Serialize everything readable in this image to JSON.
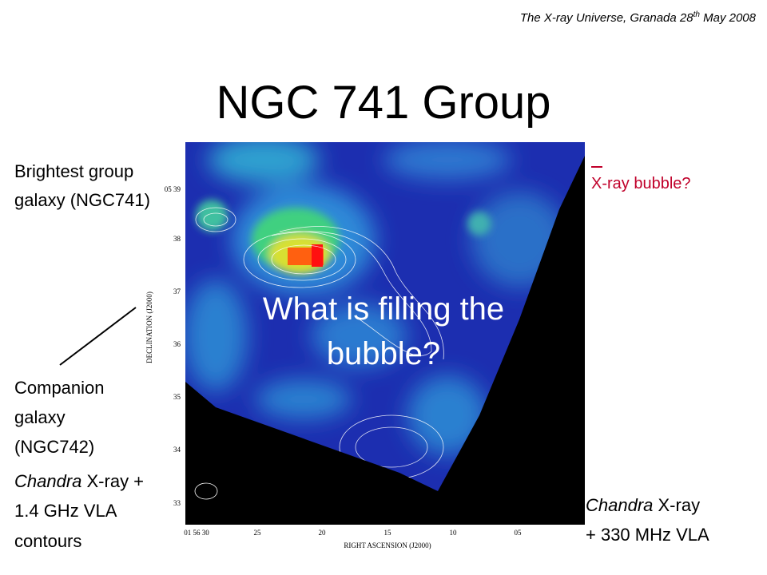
{
  "header": {
    "before": "The X-ray Universe, Granada 28",
    "superscript": "th",
    "after": " May 2008"
  },
  "title": "NGC 741 Group",
  "left_top": {
    "line1": "Brightest group",
    "line2": "galaxy (NGC741)"
  },
  "left_bottom": {
    "line1": "Companion",
    "line2": "galaxy",
    "line3": "(NGC742)",
    "caption_italic": "Chandra",
    "caption_rest": " X-ray +",
    "caption_line2": "1.4 GHz VLA",
    "caption_line3": "contours"
  },
  "right_label": "X-ray bubble?",
  "right_caption": {
    "italic": "Chandra",
    "rest": " X-ray",
    "line2": "+ 330 MHz VLA"
  },
  "overlay": {
    "line1": "What is filling the",
    "line2": "bubble?"
  },
  "image": {
    "dec_ticks": [
      "05 39",
      "38",
      "37",
      "36",
      "35",
      "34",
      "33"
    ],
    "dec_label": "DECLINATION (J2000)",
    "ra_ticks": [
      "01 56 30",
      "25",
      "20",
      "15",
      "10",
      "05"
    ],
    "ra_label": "RIGHT ASCENSION (J2000)"
  }
}
